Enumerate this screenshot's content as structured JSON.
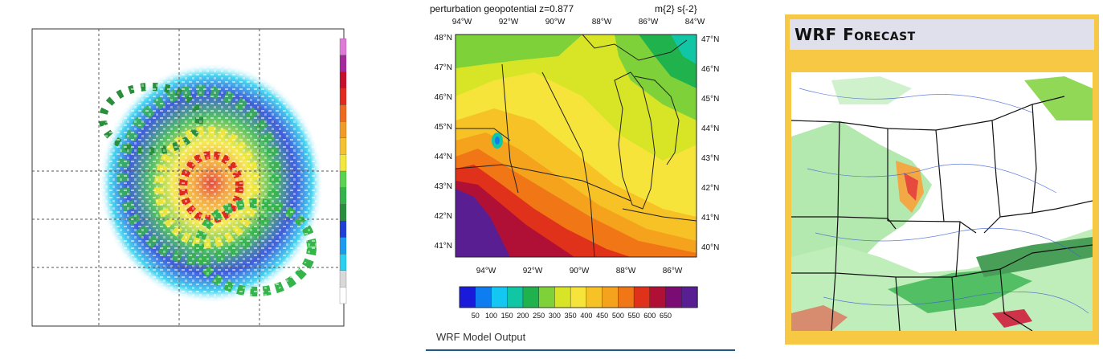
{
  "panel2": {
    "title_left": "perturbation geopotential  z=0.877",
    "title_right": "m{2} s{-2}",
    "top_lon_ticks": [
      "94°W",
      "92°W",
      "90°W",
      "88°W",
      "86°W",
      "84°W"
    ],
    "bottom_lon_ticks": [
      "94°W",
      "92°W",
      "90°W",
      "88°W",
      "86°W"
    ],
    "left_lat_ticks": [
      "48°N",
      "47°N",
      "46°N",
      "45°N",
      "44°N",
      "43°N",
      "42°N",
      "41°N"
    ],
    "right_lat_ticks": [
      "47°N",
      "46°N",
      "45°N",
      "44°N",
      "43°N",
      "42°N",
      "41°N",
      "40°N"
    ],
    "colorbar_labels": [
      "50",
      "100",
      "150",
      "200",
      "250",
      "300",
      "350",
      "400",
      "450",
      "500",
      "550",
      "600",
      "650"
    ],
    "colorbar_colors": [
      "#1a1adb",
      "#0f7df2",
      "#13c7f2",
      "#11c6a5",
      "#1fb24d",
      "#7fd13a",
      "#d8e526",
      "#f7e43a",
      "#f7c226",
      "#f5a21d",
      "#f17616",
      "#e0321a",
      "#b01036",
      "#7a0c73",
      "#5a1e93"
    ],
    "caption": "WRF Model Output"
  },
  "panel3": {
    "title": "WRF Forecast"
  },
  "panel1": {
    "colorbar_colors": [
      "#ffffff",
      "#d9d9d9",
      "#29d0ef",
      "#1a9cf1",
      "#1e40d6",
      "#2a8f3c",
      "#34b44a",
      "#5ad350",
      "#f2e73a",
      "#f5c22f",
      "#f29a26",
      "#ee6a1f",
      "#e22a1d",
      "#c7102b",
      "#a52a9b",
      "#e07ad8"
    ]
  }
}
